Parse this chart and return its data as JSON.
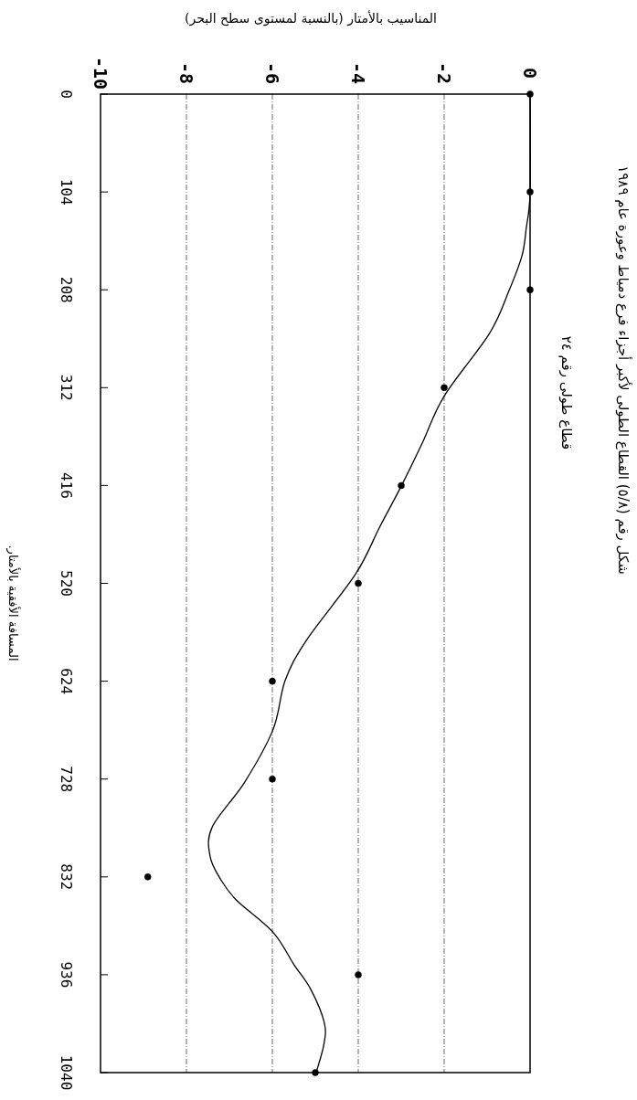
{
  "chart_data": {
    "type": "line",
    "title": "شكل رقم (٥/٨) القطاع الطولى لأكبر أجزاء فرع دمياط وعورة عام ١٩٨٩",
    "subtitle": "قطاع طولى رقم ٢٤",
    "xlabel": "المناسيب بالأمتار (بالنسبة لمستوى سطح البحر)",
    "ylabel": "المسافة الأفقية بالأمتار.",
    "xlim": [
      -10,
      0
    ],
    "xticks": [
      -10,
      -8,
      -6,
      -4,
      -2,
      0
    ],
    "ylim": [
      1040,
      0
    ],
    "yticks": [
      0,
      104,
      208,
      312,
      416,
      520,
      624,
      728,
      832,
      936,
      1040
    ],
    "grid": "x",
    "series": [
      {
        "type": "scatter",
        "marker": "circle",
        "color": "#000000",
        "x": [
          0,
          0,
          0,
          -2,
          -3,
          -4,
          -6,
          -6,
          -8.9,
          -4,
          -5
        ],
        "values": [
          0,
          104,
          208,
          312,
          416,
          520,
          624,
          728,
          832,
          936,
          1040
        ]
      },
      {
        "type": "line",
        "line_style": "solid",
        "color": "#000000",
        "x": [
          0,
          0,
          -0.09,
          -0.19,
          -0.5,
          -0.94,
          -2.0,
          -2.5,
          -2.98,
          -3.5,
          -4.06,
          -5.2,
          -5.7,
          -5.98,
          -6.64,
          -7.4,
          -7.45,
          -7.2,
          -6.83,
          -5.98,
          -5.5,
          -5.1,
          -4.79,
          -4.8,
          -4.98
        ],
        "values": [
          0,
          104,
          143,
          172,
          210,
          254,
          321,
          370,
          415,
          460,
          510,
          580,
          623,
          675,
          731,
          779,
          810,
          835,
          857,
          891,
          925,
          952,
          987,
          1010,
          1040
        ]
      }
    ]
  }
}
